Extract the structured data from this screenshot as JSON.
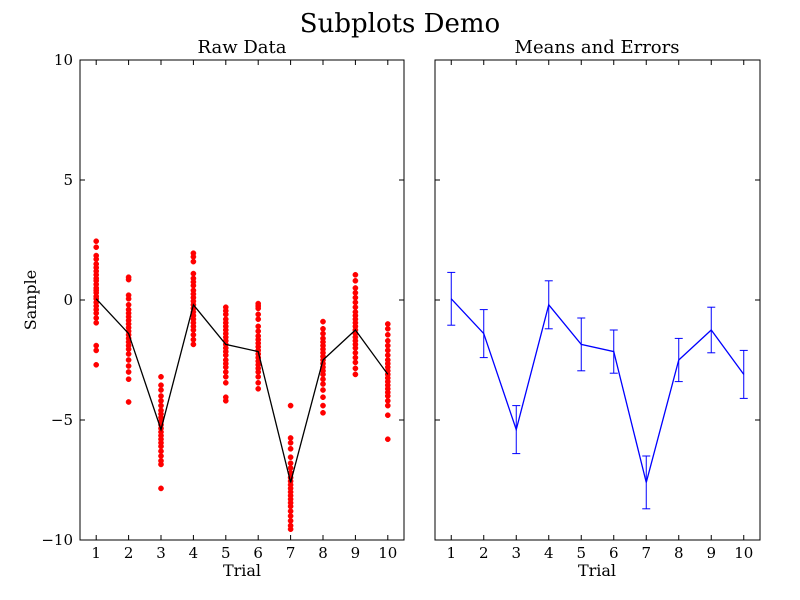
{
  "figure": {
    "title": "Subplots Demo",
    "background": "#ffffff"
  },
  "chart_data": [
    {
      "type": "scatter",
      "title": "Raw Data",
      "xlabel": "Trial",
      "ylabel": "Sample",
      "xlim": [
        0.5,
        10.5
      ],
      "ylim": [
        -10,
        10
      ],
      "x_ticks": [
        1,
        2,
        3,
        4,
        5,
        6,
        7,
        8,
        9,
        10
      ],
      "y_ticks": [
        -10,
        -5,
        0,
        5,
        10
      ],
      "y_tick_labels": [
        "−10",
        "−5",
        "0",
        "5",
        "10"
      ],
      "grid": false,
      "point_color": "#ff0000",
      "line_color": "#000000",
      "series": [
        {
          "x": 1,
          "samples": [
            2.45,
            2.2,
            1.85,
            1.7,
            1.5,
            1.35,
            1.2,
            1.05,
            0.9,
            0.8,
            0.65,
            0.5,
            0.4,
            0.3,
            0.15,
            0.05,
            -0.1,
            -0.25,
            -0.4,
            -0.55,
            -0.75,
            -0.95,
            -1.9,
            -2.1,
            -2.7
          ]
        },
        {
          "x": 2,
          "samples": [
            0.95,
            0.85,
            0.2,
            0.05,
            -0.2,
            -0.4,
            -0.55,
            -0.7,
            -0.85,
            -1.0,
            -1.15,
            -1.3,
            -1.45,
            -1.6,
            -1.75,
            -1.9,
            -2.05,
            -2.25,
            -2.5,
            -2.75,
            -3.0,
            -3.3,
            -4.25
          ]
        },
        {
          "x": 3,
          "samples": [
            -3.2,
            -3.55,
            -3.75,
            -4.0,
            -4.2,
            -4.4,
            -4.6,
            -4.75,
            -4.9,
            -5.05,
            -5.2,
            -5.35,
            -5.5,
            -5.65,
            -5.8,
            -5.95,
            -6.1,
            -6.3,
            -6.5,
            -6.7,
            -6.85,
            -7.85
          ]
        },
        {
          "x": 4,
          "samples": [
            1.95,
            1.8,
            1.6,
            1.1,
            0.9,
            0.75,
            0.6,
            0.4,
            0.25,
            0.1,
            -0.05,
            -0.2,
            -0.35,
            -0.5,
            -0.65,
            -0.8,
            -0.95,
            -1.1,
            -1.25,
            -1.45,
            -1.65,
            -1.85
          ]
        },
        {
          "x": 5,
          "samples": [
            -0.3,
            -0.45,
            -0.6,
            -0.8,
            -0.95,
            -1.1,
            -1.25,
            -1.4,
            -1.55,
            -1.7,
            -1.85,
            -2.0,
            -2.15,
            -2.3,
            -2.5,
            -2.65,
            -2.8,
            -3.0,
            -3.2,
            -3.45,
            -4.05,
            -4.2
          ]
        },
        {
          "x": 6,
          "samples": [
            -0.15,
            -0.25,
            -0.35,
            -0.6,
            -0.8,
            -1.1,
            -1.3,
            -1.5,
            -1.65,
            -1.8,
            -1.95,
            -2.1,
            -2.25,
            -2.4,
            -2.55,
            -2.7,
            -2.85,
            -3.0,
            -3.2,
            -3.45,
            -3.7
          ]
        },
        {
          "x": 7,
          "samples": [
            -4.4,
            -5.75,
            -5.95,
            -6.2,
            -6.55,
            -6.8,
            -7.0,
            -7.2,
            -7.4,
            -7.55,
            -7.7,
            -7.85,
            -8.0,
            -8.15,
            -8.3,
            -8.45,
            -8.6,
            -8.8,
            -9.0,
            -9.2,
            -9.4,
            -9.55
          ]
        },
        {
          "x": 8,
          "samples": [
            -0.9,
            -1.2,
            -1.4,
            -1.6,
            -1.75,
            -1.9,
            -2.05,
            -2.2,
            -2.35,
            -2.5,
            -2.65,
            -2.8,
            -2.95,
            -3.1,
            -3.3,
            -3.5,
            -3.75,
            -4.05,
            -4.4,
            -4.7
          ]
        },
        {
          "x": 9,
          "samples": [
            1.05,
            0.8,
            0.5,
            0.3,
            0.1,
            -0.1,
            -0.3,
            -0.5,
            -0.65,
            -0.8,
            -0.95,
            -1.1,
            -1.25,
            -1.4,
            -1.55,
            -1.7,
            -1.85,
            -2.0,
            -2.2,
            -2.4,
            -2.6,
            -2.85,
            -3.1
          ]
        },
        {
          "x": 10,
          "samples": [
            -1.0,
            -1.2,
            -1.45,
            -1.7,
            -1.9,
            -2.1,
            -2.3,
            -2.5,
            -2.65,
            -2.8,
            -2.95,
            -3.1,
            -3.25,
            -3.4,
            -3.55,
            -3.7,
            -3.85,
            -4.0,
            -4.2,
            -4.4,
            -4.8,
            -5.8
          ]
        }
      ],
      "mean_line": {
        "x": [
          1,
          2,
          3,
          4,
          5,
          6,
          7,
          8,
          9,
          10
        ],
        "y": [
          0.05,
          -1.4,
          -5.4,
          -0.2,
          -1.85,
          -2.15,
          -7.6,
          -2.5,
          -1.25,
          -3.1
        ]
      }
    },
    {
      "type": "line",
      "title": "Means and Errors",
      "xlabel": "Trial",
      "ylabel": "",
      "xlim": [
        0.5,
        10.5
      ],
      "ylim": [
        -10,
        10
      ],
      "x_ticks": [
        1,
        2,
        3,
        4,
        5,
        6,
        7,
        8,
        9,
        10
      ],
      "grid": false,
      "line_color": "#0000ff",
      "x": [
        1,
        2,
        3,
        4,
        5,
        6,
        7,
        8,
        9,
        10
      ],
      "y": [
        0.05,
        -1.4,
        -5.4,
        -0.2,
        -1.85,
        -2.15,
        -7.6,
        -2.5,
        -1.25,
        -3.1
      ],
      "yerr": [
        1.1,
        1.0,
        1.0,
        1.0,
        1.1,
        0.9,
        1.1,
        0.9,
        0.95,
        1.0
      ]
    }
  ]
}
